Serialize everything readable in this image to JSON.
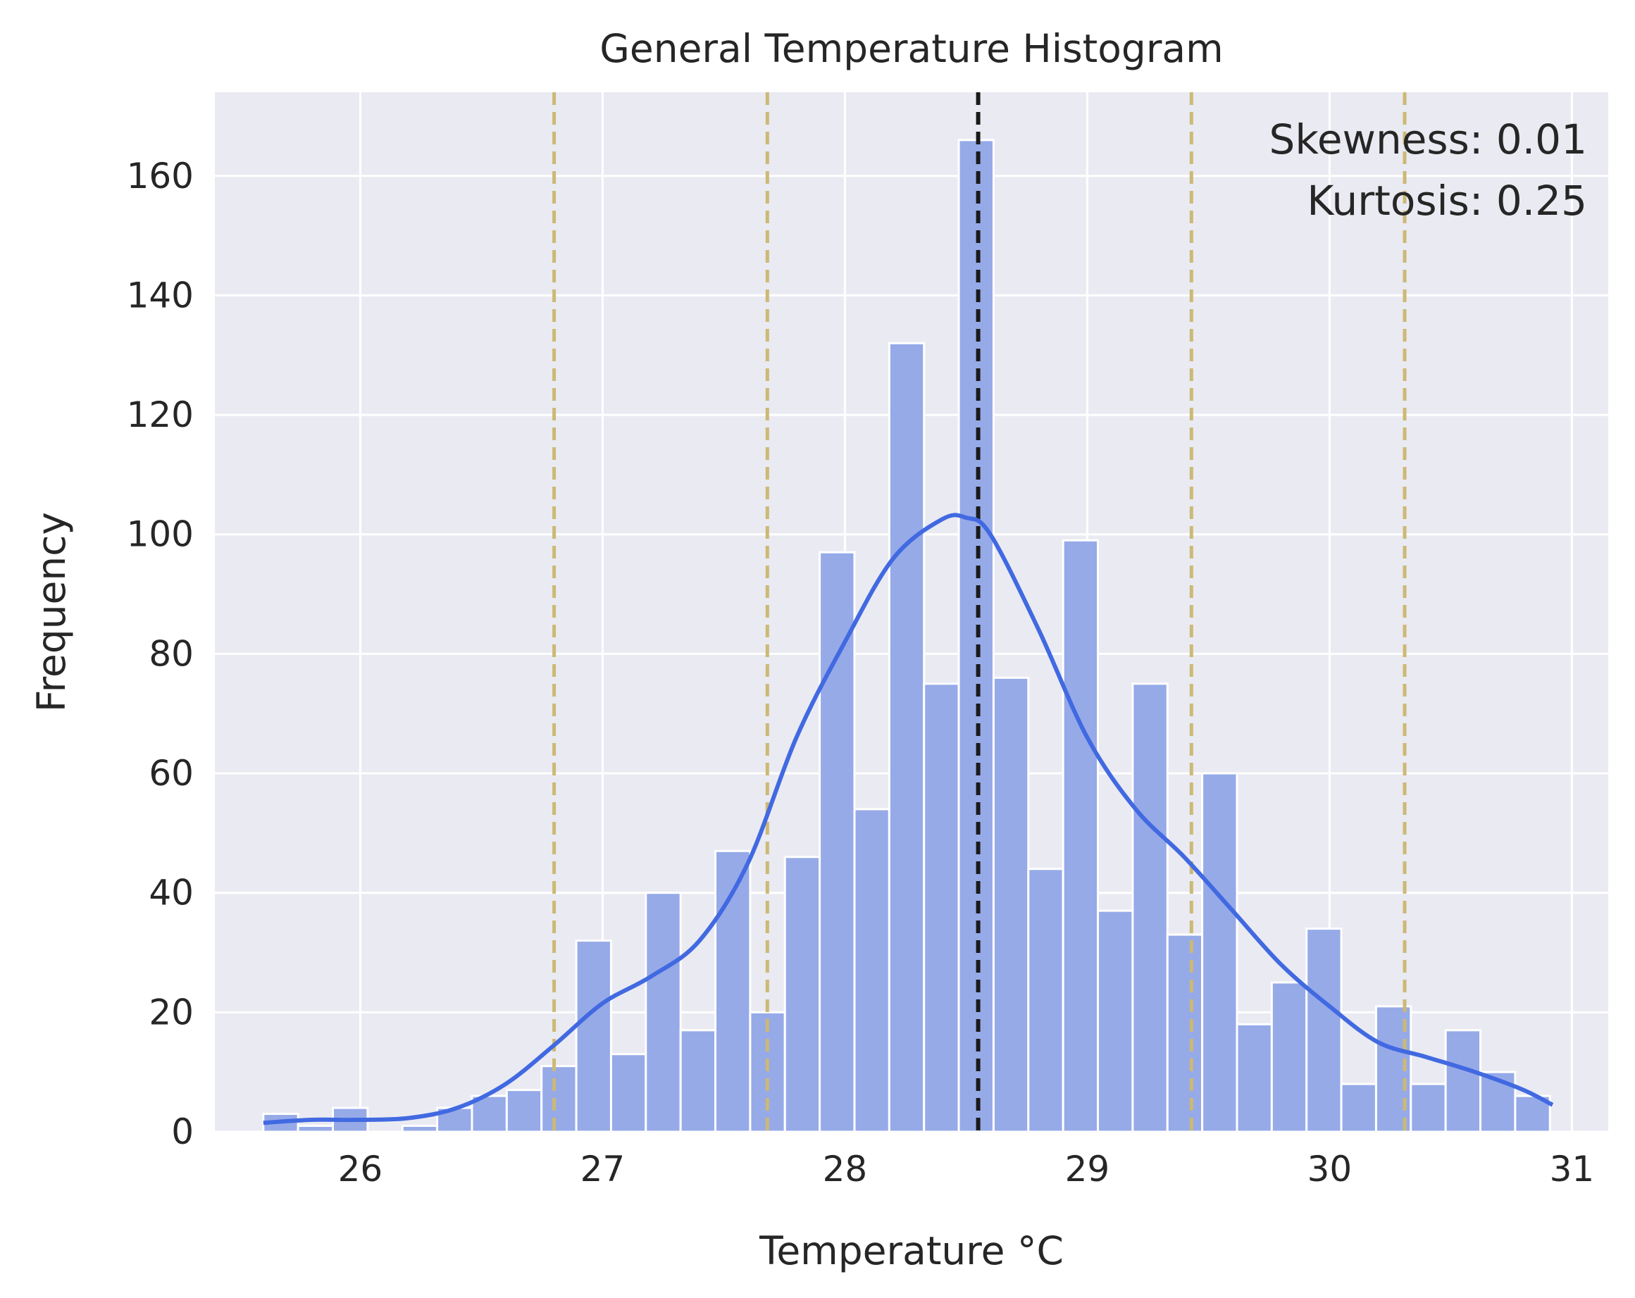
{
  "chart_data": {
    "type": "bar",
    "title": "General Temperature Histogram",
    "xlabel": "Temperature °C",
    "ylabel": "Frequency",
    "xlim": [
      25.4,
      31.15
    ],
    "ylim": [
      0,
      174
    ],
    "x_ticks": [
      26,
      27,
      28,
      29,
      30,
      31
    ],
    "y_ticks": [
      0,
      20,
      40,
      60,
      80,
      100,
      120,
      140,
      160
    ],
    "grid": true,
    "annotations": {
      "skewness": "Skewness: 0.01",
      "kurtosis": "Kurtosis: 0.25"
    },
    "bins": {
      "start": 25.6,
      "width": 0.1435,
      "counts": [
        3,
        1,
        4,
        0,
        1,
        4,
        6,
        7,
        11,
        32,
        13,
        40,
        17,
        47,
        20,
        46,
        97,
        54,
        132,
        75,
        166,
        76,
        44,
        99,
        37,
        75,
        33,
        60,
        18,
        25,
        34,
        8,
        21,
        8,
        17,
        10,
        6
      ]
    },
    "kde": {
      "x": [
        25.6,
        25.8,
        26.0,
        26.2,
        26.4,
        26.6,
        26.8,
        27.0,
        27.2,
        27.4,
        27.6,
        27.8,
        28.0,
        28.2,
        28.4,
        28.5,
        28.6,
        28.8,
        29.0,
        29.2,
        29.4,
        29.6,
        29.8,
        30.0,
        30.2,
        30.4,
        30.6,
        30.8,
        30.92
      ],
      "y": [
        1.5,
        2.0,
        2.0,
        2.3,
        4.0,
        8.0,
        14.5,
        21.5,
        26.0,
        32.0,
        45.0,
        66.0,
        82.0,
        96.0,
        102.5,
        102.8,
        100.0,
        84.0,
        66.0,
        54.0,
        46.0,
        37.0,
        28.0,
        21.0,
        15.0,
        12.5,
        10.0,
        7.0,
        4.5
      ]
    },
    "mean_line": 28.55,
    "std_lines": [
      26.8,
      27.68,
      29.43,
      30.31
    ],
    "colors": {
      "background": "#eaeaf2",
      "grid": "#ffffff",
      "bar_fill": "#96aae8",
      "bar_edge": "#ffffff",
      "kde_line": "#4169e1",
      "mean_line": "#1a1a1a",
      "std_line": "#ccb974"
    }
  }
}
